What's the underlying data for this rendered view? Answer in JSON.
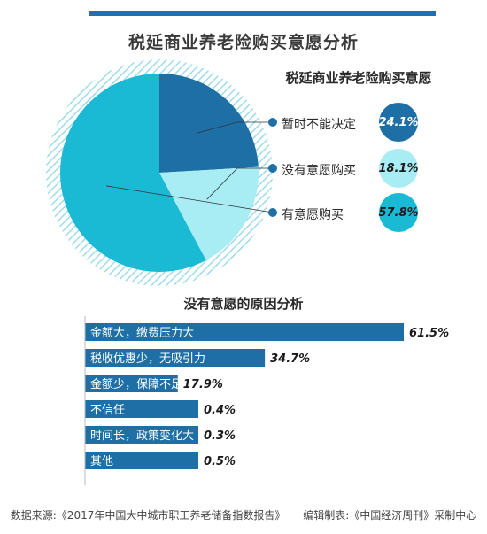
{
  "header": {
    "title": "税延商业养老险购买意愿分析"
  },
  "chart_data": [
    {
      "type": "pie",
      "title": "税延商业养老险购买意愿",
      "slices": [
        {
          "label": "暂时不能决定",
          "value": 24.1,
          "value_label": "24.1%",
          "color": "#1d6fa5",
          "badge_text_color": "#ffffff"
        },
        {
          "label": "没有意愿购买",
          "value": 18.1,
          "value_label": "18.1%",
          "color": "#a8ecf4",
          "badge_text_color": "#1a1a1a"
        },
        {
          "label": "有意愿购买",
          "value": 57.8,
          "value_label": "57.8%",
          "color": "#1ab9d4",
          "badge_text_color": "#1a1a1a"
        }
      ]
    },
    {
      "type": "bar",
      "orientation": "horizontal",
      "title": "没有意愿的原因分析",
      "categories": [
        "金额大，缴费压力大",
        "税收优惠少，无吸引力",
        "金额少，保障不足",
        "不信任",
        "时间长，政策变化大",
        "其他"
      ],
      "values": [
        61.5,
        34.7,
        17.9,
        0.4,
        0.3,
        0.5
      ],
      "value_labels": [
        "61.5%",
        "34.7%",
        "17.9%",
        "0.4%",
        "0.3%",
        "0.5%"
      ],
      "color": "#1d6fa5"
    }
  ],
  "footer": {
    "source": "数据来源:《2017年中国大中城市职工养老储备指数报告》",
    "editor": "编辑制表:《中国经济周刊》采制中心"
  }
}
